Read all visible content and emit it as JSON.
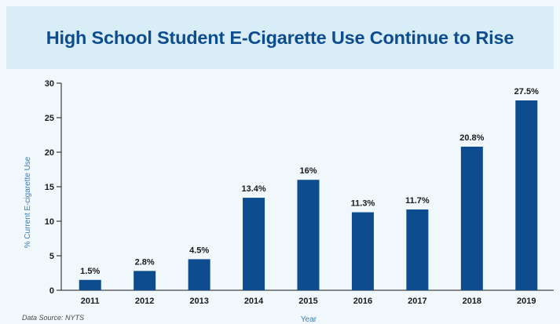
{
  "header": {
    "title": "High School Student E-Cigarette Use Continue to Rise"
  },
  "source": "Data Source: NYTS",
  "colors": {
    "bar": "#0d4c8f",
    "title": "#0d4c8f",
    "header_bg": "#d9edf7",
    "card_bg": "#f1f8fc",
    "axis_title": "#3b7db8"
  },
  "chart_data": {
    "type": "bar",
    "title": "High School Student E-Cigarette Use Continue to Rise",
    "xlabel": "Year",
    "ylabel": "% Current E-cigarette Use",
    "categories": [
      "2011",
      "2012",
      "2013",
      "2014",
      "2015",
      "2016",
      "2017",
      "2018",
      "2019"
    ],
    "values": [
      1.5,
      2.8,
      4.5,
      13.4,
      16,
      11.3,
      11.7,
      20.8,
      27.5
    ],
    "data_labels": [
      "1.5%",
      "2.8%",
      "4.5%",
      "13.4%",
      "16%",
      "11.3%",
      "11.7%",
      "20.8%",
      "27.5%"
    ],
    "ylim": [
      0,
      30
    ],
    "yticks": [
      0,
      5,
      10,
      15,
      20,
      25,
      30
    ],
    "grid": false,
    "legend": "none"
  }
}
